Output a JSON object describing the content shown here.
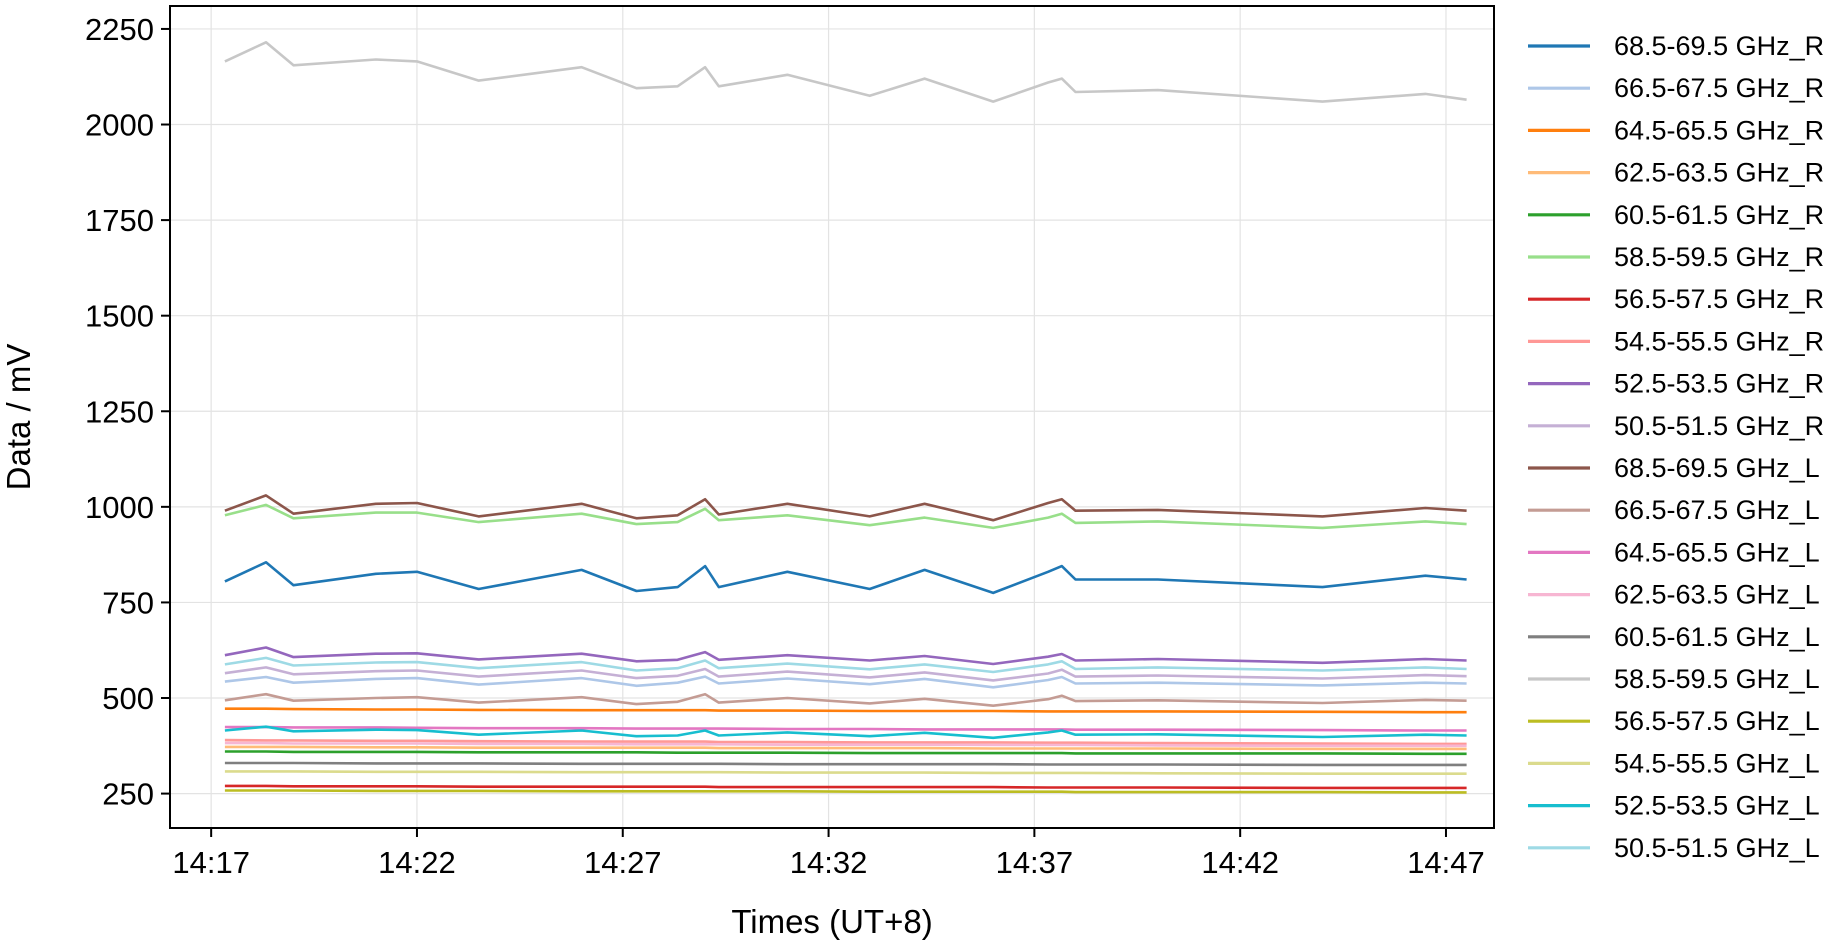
{
  "chart_data": {
    "type": "line",
    "title": "",
    "xlabel": "Times (UT+8)",
    "ylabel": "Data / mV",
    "x_ticks": [
      "14:17",
      "14:22",
      "14:27",
      "14:32",
      "14:37",
      "14:42",
      "14:47"
    ],
    "y_ticks": [
      250,
      500,
      750,
      1000,
      1250,
      1500,
      1750,
      2000,
      2250
    ],
    "xlim": [
      "14:16",
      "14:48:10"
    ],
    "ylim": [
      160,
      2310
    ],
    "grid": true,
    "legend_position": "outside-right",
    "x": [
      "14:17:20",
      "14:18:20",
      "14:19:00",
      "14:21:00",
      "14:22:00",
      "14:23:30",
      "14:26:00",
      "14:27:20",
      "14:28:20",
      "14:29:00",
      "14:29:20",
      "14:31:00",
      "14:33:00",
      "14:34:20",
      "14:36:00",
      "14:37:20",
      "14:37:40",
      "14:38:00",
      "14:40:00",
      "14:44:00",
      "14:46:30",
      "14:47:30"
    ],
    "series": [
      {
        "name": "68.5-69.5 GHz_R",
        "color": "#1f77b4",
        "values": [
          805,
          855,
          795,
          825,
          830,
          785,
          835,
          780,
          790,
          845,
          790,
          830,
          785,
          835,
          775,
          830,
          845,
          810,
          810,
          790,
          820,
          810
        ]
      },
      {
        "name": "66.5-67.5 GHz_R",
        "color": "#aec7e8",
        "values": [
          543,
          555,
          540,
          550,
          552,
          535,
          552,
          532,
          540,
          556,
          538,
          551,
          536,
          550,
          528,
          547,
          555,
          538,
          540,
          533,
          540,
          538
        ]
      },
      {
        "name": "64.5-65.5 GHz_R",
        "color": "#ff7f0e",
        "values": [
          472,
          472,
          471,
          470,
          470,
          469,
          468,
          468,
          468,
          468,
          467,
          467,
          466,
          466,
          466,
          465,
          465,
          465,
          465,
          464,
          463,
          463
        ]
      },
      {
        "name": "62.5-63.5 GHz_R",
        "color": "#ffbb78",
        "values": [
          372,
          372,
          372,
          371,
          371,
          370,
          370,
          370,
          370,
          370,
          369,
          369,
          369,
          369,
          368,
          368,
          368,
          368,
          368,
          367,
          367,
          367
        ]
      },
      {
        "name": "60.5-61.5 GHz_R",
        "color": "#2ca02c",
        "values": [
          360,
          360,
          359,
          359,
          359,
          358,
          358,
          358,
          357,
          357,
          357,
          357,
          356,
          356,
          356,
          356,
          356,
          355,
          355,
          355,
          354,
          354
        ]
      },
      {
        "name": "58.5-59.5 GHz_R",
        "color": "#98df8a",
        "values": [
          978,
          1005,
          970,
          985,
          985,
          960,
          982,
          955,
          960,
          995,
          965,
          978,
          952,
          972,
          945,
          972,
          982,
          958,
          962,
          945,
          962,
          955
        ]
      },
      {
        "name": "56.5-57.5 GHz_R",
        "color": "#d62728",
        "values": [
          270,
          270,
          269,
          269,
          269,
          268,
          268,
          268,
          268,
          268,
          267,
          267,
          267,
          267,
          267,
          266,
          266,
          266,
          266,
          265,
          265,
          265
        ]
      },
      {
        "name": "54.5-55.5 GHz_R",
        "color": "#ff9896",
        "values": [
          390,
          389,
          389,
          388,
          388,
          387,
          386,
          386,
          386,
          386,
          385,
          385,
          384,
          384,
          384,
          383,
          383,
          383,
          382,
          381,
          380,
          380
        ]
      },
      {
        "name": "52.5-53.5 GHz_R",
        "color": "#9467bd",
        "values": [
          612,
          632,
          607,
          616,
          617,
          601,
          616,
          596,
          600,
          620,
          600,
          612,
          598,
          610,
          589,
          608,
          615,
          598,
          602,
          592,
          602,
          598
        ]
      },
      {
        "name": "50.5-51.5 GHz_R",
        "color": "#c5b0d5",
        "values": [
          565,
          580,
          562,
          570,
          572,
          556,
          572,
          552,
          558,
          576,
          556,
          569,
          554,
          567,
          546,
          564,
          574,
          556,
          559,
          551,
          560,
          557
        ]
      },
      {
        "name": "68.5-69.5 GHz_L",
        "color": "#8c564b",
        "values": [
          990,
          1030,
          982,
          1008,
          1010,
          975,
          1008,
          970,
          978,
          1020,
          980,
          1008,
          975,
          1008,
          965,
          1010,
          1020,
          990,
          992,
          975,
          997,
          990
        ]
      },
      {
        "name": "66.5-67.5 GHz_L",
        "color": "#c49c94",
        "values": [
          494,
          510,
          493,
          500,
          502,
          488,
          502,
          484,
          490,
          510,
          488,
          500,
          486,
          498,
          480,
          497,
          506,
          492,
          494,
          487,
          495,
          493
        ]
      },
      {
        "name": "64.5-65.5 GHz_L",
        "color": "#e377c2",
        "values": [
          424,
          424,
          423,
          423,
          422,
          421,
          421,
          420,
          420,
          420,
          420,
          419,
          419,
          418,
          418,
          418,
          418,
          417,
          417,
          416,
          415,
          415
        ]
      },
      {
        "name": "62.5-63.5 GHz_L",
        "color": "#f7b6d2",
        "values": [
          382,
          382,
          381,
          381,
          381,
          380,
          380,
          379,
          379,
          379,
          379,
          378,
          378,
          378,
          377,
          377,
          377,
          377,
          376,
          375,
          375,
          375
        ]
      },
      {
        "name": "60.5-61.5 GHz_L",
        "color": "#7f7f7f",
        "values": [
          330,
          330,
          330,
          329,
          329,
          329,
          328,
          328,
          328,
          328,
          328,
          327,
          327,
          327,
          327,
          326,
          326,
          326,
          326,
          325,
          325,
          325
        ]
      },
      {
        "name": "58.5-59.5 GHz_L",
        "color": "#c7c7c7",
        "values": [
          2165,
          2215,
          2155,
          2170,
          2165,
          2115,
          2150,
          2095,
          2100,
          2150,
          2100,
          2130,
          2075,
          2120,
          2060,
          2110,
          2120,
          2085,
          2090,
          2060,
          2080,
          2065
        ]
      },
      {
        "name": "56.5-57.5 GHz_L",
        "color": "#bcbd22",
        "values": [
          258,
          258,
          258,
          257,
          257,
          257,
          256,
          256,
          256,
          256,
          256,
          256,
          255,
          255,
          255,
          255,
          255,
          254,
          254,
          254,
          253,
          253
        ]
      },
      {
        "name": "54.5-55.5 GHz_L",
        "color": "#dbdb8d",
        "values": [
          308,
          308,
          308,
          307,
          307,
          307,
          306,
          306,
          306,
          306,
          306,
          305,
          305,
          305,
          304,
          304,
          304,
          304,
          303,
          302,
          302,
          302
        ]
      },
      {
        "name": "52.5-53.5 GHz_L",
        "color": "#17becf",
        "values": [
          415,
          425,
          413,
          417,
          416,
          404,
          415,
          400,
          402,
          415,
          402,
          410,
          400,
          409,
          396,
          410,
          415,
          404,
          405,
          398,
          404,
          402
        ]
      },
      {
        "name": "50.5-51.5 GHz_L",
        "color": "#9edae5",
        "values": [
          588,
          605,
          585,
          593,
          594,
          578,
          594,
          572,
          578,
          598,
          578,
          590,
          575,
          588,
          568,
          588,
          596,
          576,
          580,
          572,
          580,
          576
        ]
      }
    ]
  }
}
